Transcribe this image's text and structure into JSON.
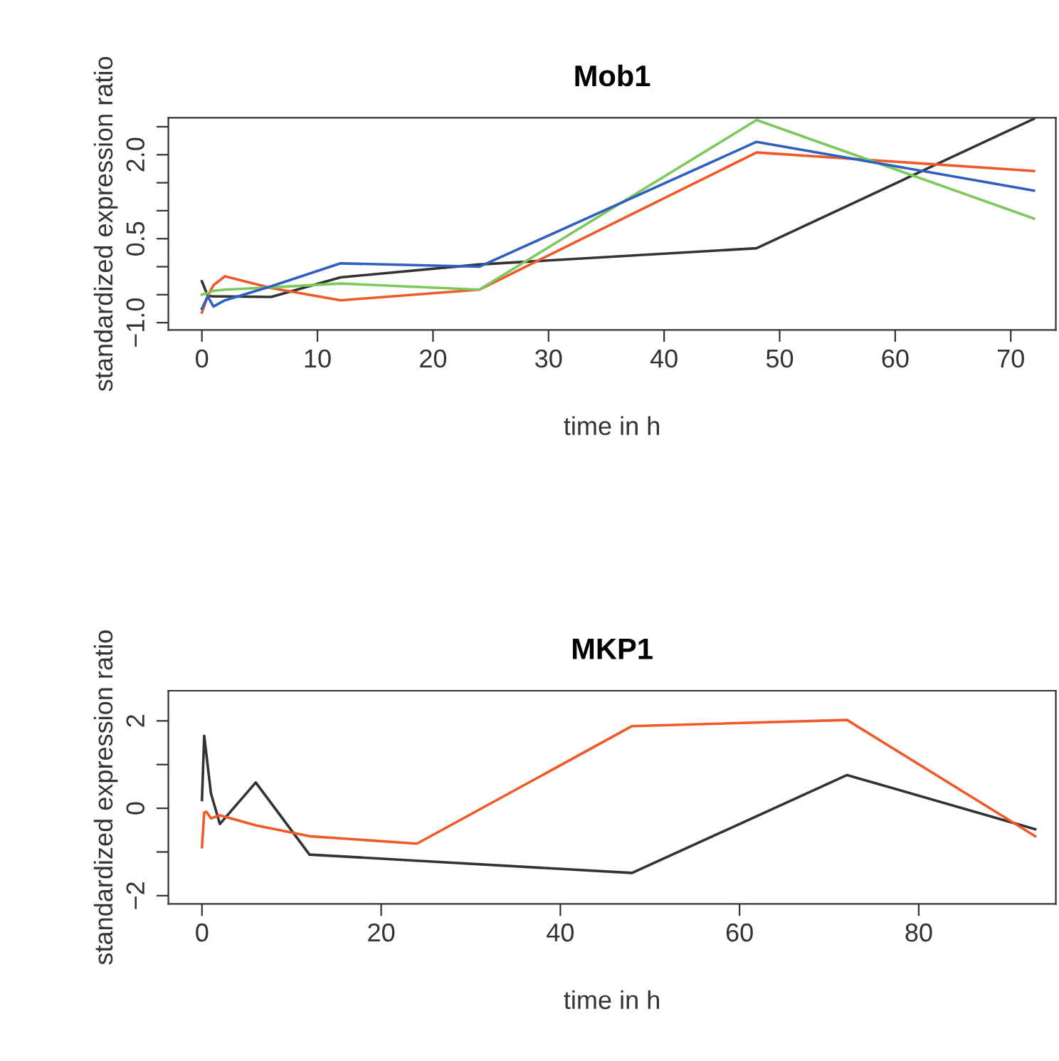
{
  "chart_data": [
    {
      "type": "line",
      "title": "Mob1",
      "xlabel": "time in h",
      "ylabel": "standardized expression ratio",
      "xlim": [
        -2.9,
        73.9
      ],
      "ylim": [
        -1.13,
        2.66
      ],
      "xticks": [
        0,
        10,
        20,
        30,
        40,
        50,
        60,
        70
      ],
      "yticks": [
        {
          "value": -1.0,
          "label": "−1.0"
        },
        {
          "value": -0.5,
          "label": null
        },
        {
          "value": 0.0,
          "label": null
        },
        {
          "value": 0.5,
          "label": "0.5"
        },
        {
          "value": 1.0,
          "label": null
        },
        {
          "value": 1.5,
          "label": null
        },
        {
          "value": 2.0,
          "label": "2.0"
        },
        {
          "value": 2.5,
          "label": null
        }
      ],
      "grid": false,
      "legend": false,
      "line_style": "solid",
      "marker": "none",
      "series": [
        {
          "color": "#333333",
          "x": [
            0,
            0.5,
            1,
            2,
            6,
            12,
            24,
            48,
            72
          ],
          "values": [
            -0.26,
            -0.52,
            -0.53,
            -0.53,
            -0.54,
            -0.19,
            0.04,
            0.33,
            2.64
          ]
        },
        {
          "color": "#f05a28",
          "x": [
            0,
            0.5,
            1,
            2,
            6,
            12,
            24,
            48,
            72
          ],
          "values": [
            -0.82,
            -0.53,
            -0.33,
            -0.17,
            -0.38,
            -0.6,
            -0.41,
            2.04,
            1.71
          ]
        },
        {
          "color": "#7dc95e",
          "x": [
            0,
            0.5,
            1,
            2,
            6,
            12,
            24,
            48,
            72
          ],
          "values": [
            -0.5,
            -0.47,
            -0.43,
            -0.41,
            -0.37,
            -0.3,
            -0.41,
            2.62,
            0.86
          ]
        },
        {
          "color": "#2f5fbf",
          "x": [
            0,
            0.5,
            1,
            2,
            6,
            12,
            24,
            48,
            72
          ],
          "values": [
            -0.75,
            -0.53,
            -0.71,
            -0.6,
            -0.35,
            0.06,
            0.0,
            2.23,
            1.36
          ]
        }
      ]
    },
    {
      "type": "line",
      "title": "MKP1",
      "xlabel": "time in h",
      "ylabel": "standardized expression ratio",
      "xlim": [
        -3.75,
        95.3
      ],
      "ylim": [
        -2.19,
        2.69
      ],
      "xticks": [
        0,
        20,
        40,
        60,
        80
      ],
      "yticks": [
        {
          "value": -2,
          "label": "−2"
        },
        {
          "value": -1,
          "label": null
        },
        0,
        {
          "value": 1,
          "label": null
        },
        2
      ],
      "grid": false,
      "legend": false,
      "line_style": "solid",
      "marker": "none",
      "series": [
        {
          "color": "#333333",
          "x": [
            0,
            0.25,
            1,
            2,
            6,
            12,
            24,
            48,
            72,
            93
          ],
          "values": [
            0.19,
            1.66,
            0.34,
            -0.36,
            0.59,
            -1.06,
            -1.2,
            -1.48,
            0.76,
            -0.48
          ]
        },
        {
          "color": "#f05a28",
          "x": [
            0,
            0.25,
            0.5,
            1,
            2,
            6,
            12,
            24,
            48,
            72,
            93
          ],
          "values": [
            -0.89,
            -0.1,
            -0.08,
            -0.23,
            -0.16,
            -0.39,
            -0.64,
            -0.81,
            1.88,
            2.02,
            -0.64
          ]
        }
      ]
    }
  ]
}
